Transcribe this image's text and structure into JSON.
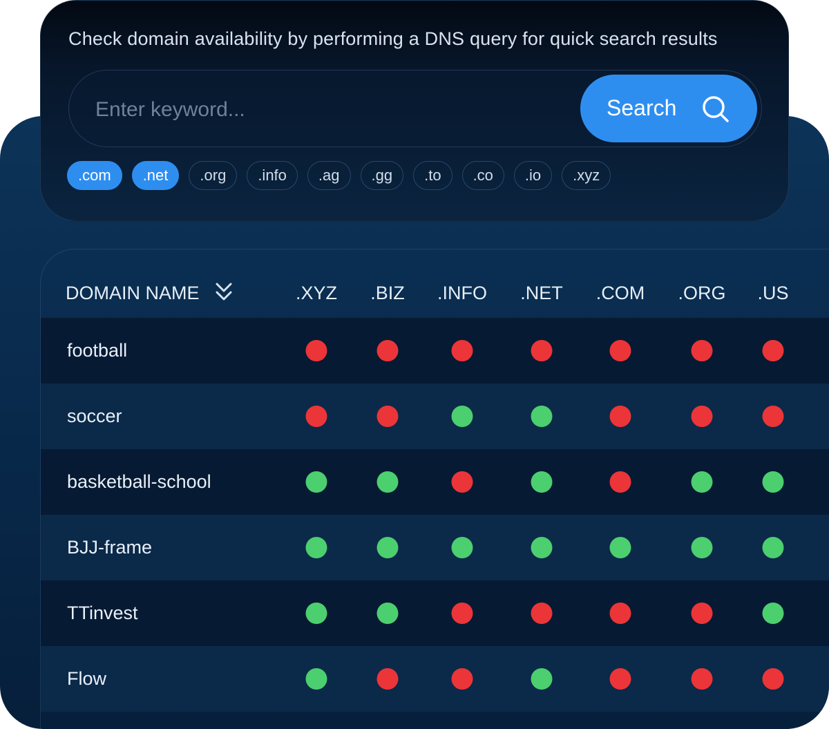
{
  "search": {
    "subtitle": "Check domain availability by performing a DNS query for quick search results",
    "placeholder": "Enter keyword...",
    "button_label": "Search",
    "button_icon": "search-icon"
  },
  "tld_filters": [
    {
      "label": ".com",
      "active": true
    },
    {
      "label": ".net",
      "active": true
    },
    {
      "label": ".org",
      "active": false
    },
    {
      "label": ".info",
      "active": false
    },
    {
      "label": ".ag",
      "active": false
    },
    {
      "label": ".gg",
      "active": false
    },
    {
      "label": ".to",
      "active": false
    },
    {
      "label": ".co",
      "active": false
    },
    {
      "label": ".io",
      "active": false
    },
    {
      "label": ".xyz",
      "active": false
    }
  ],
  "table": {
    "domain_header": "DOMAIN NAME",
    "sort_icon": "chevrons-down-icon",
    "columns": [
      ".XYZ",
      ".BIZ",
      ".INFO",
      ".NET",
      ".COM",
      ".ORG",
      ".US"
    ],
    "rows": [
      {
        "name": "football",
        "status": [
          "taken",
          "taken",
          "taken",
          "taken",
          "taken",
          "taken",
          "taken"
        ]
      },
      {
        "name": "soccer",
        "status": [
          "taken",
          "taken",
          "available",
          "available",
          "taken",
          "taken",
          "taken"
        ]
      },
      {
        "name": "basketball-school",
        "status": [
          "available",
          "available",
          "taken",
          "available",
          "taken",
          "available",
          "available"
        ]
      },
      {
        "name": "BJJ-frame",
        "status": [
          "available",
          "available",
          "available",
          "available",
          "available",
          "available",
          "available"
        ]
      },
      {
        "name": "TTinvest",
        "status": [
          "available",
          "available",
          "taken",
          "taken",
          "taken",
          "taken",
          "available"
        ]
      },
      {
        "name": "Flow",
        "status": [
          "available",
          "taken",
          "taken",
          "available",
          "taken",
          "taken",
          "taken"
        ]
      }
    ]
  },
  "colors": {
    "accent": "#2e8ef0",
    "available": "#4ccf6e",
    "taken": "#ec3538"
  }
}
